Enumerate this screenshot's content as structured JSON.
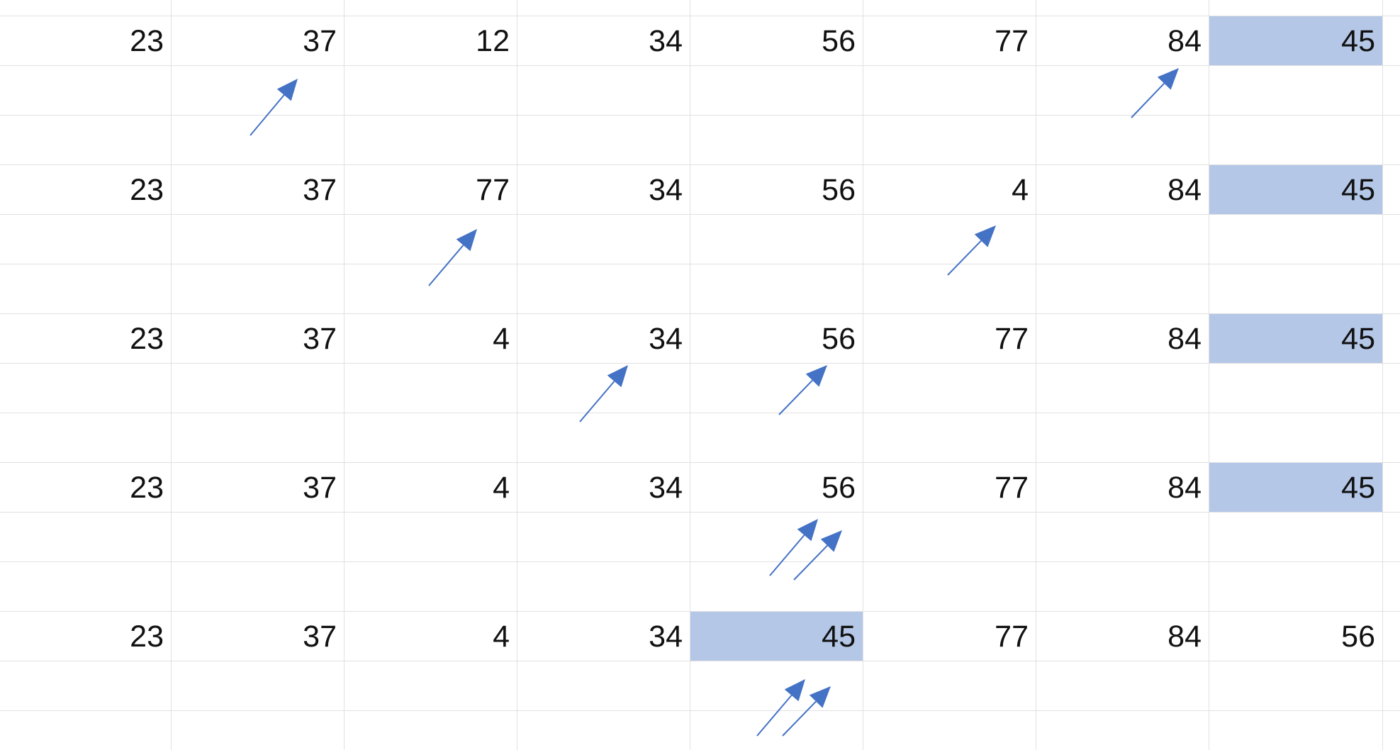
{
  "colors": {
    "highlight": "#b4c7e7",
    "arrow": "#4472c4",
    "gridline": "#e1e1e1",
    "text": "#111111"
  },
  "groups": [
    {
      "values": [
        "23",
        "37",
        "12",
        "34",
        "56",
        "77",
        "84",
        "45"
      ],
      "highlighted_column": 7,
      "arrow_icons": [
        "arrow-up-right-icon",
        "arrow-up-right-icon"
      ]
    },
    {
      "values": [
        "23",
        "37",
        "77",
        "34",
        "56",
        "4",
        "84",
        "45"
      ],
      "highlighted_column": 7,
      "arrow_icons": [
        "arrow-up-right-icon",
        "arrow-up-right-icon"
      ]
    },
    {
      "values": [
        "23",
        "37",
        "4",
        "34",
        "56",
        "77",
        "84",
        "45"
      ],
      "highlighted_column": 7,
      "arrow_icons": [
        "arrow-up-right-icon",
        "arrow-up-right-icon"
      ]
    },
    {
      "values": [
        "23",
        "37",
        "4",
        "34",
        "56",
        "77",
        "84",
        "45"
      ],
      "highlighted_column": 7,
      "arrow_icons": [
        "arrow-up-right-icon",
        "arrow-up-right-icon"
      ]
    },
    {
      "values": [
        "23",
        "37",
        "4",
        "34",
        "45",
        "77",
        "84",
        "56"
      ],
      "highlighted_column": 4,
      "arrow_icons": [
        "arrow-up-right-icon",
        "arrow-up-right-icon"
      ]
    }
  ]
}
